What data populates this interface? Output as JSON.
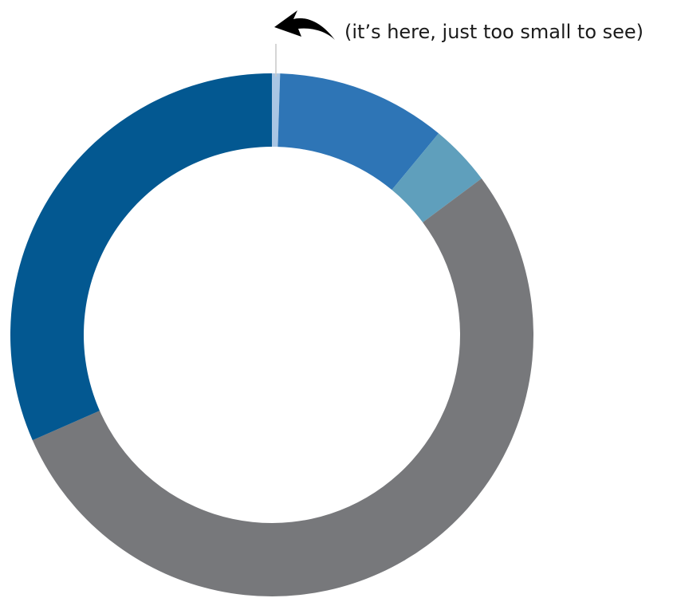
{
  "chart_data": {
    "type": "pie",
    "variant": "donut",
    "title": "",
    "start_angle_deg": 0,
    "direction": "clockwise",
    "slices": [
      {
        "value": 0.5,
        "color": "#a9c6e4"
      },
      {
        "value": 10.5,
        "color": "#2e75b6"
      },
      {
        "value": 3.8,
        "color": "#5f9fbc"
      },
      {
        "value": 53.6,
        "color": "#77787b"
      },
      {
        "value": 31.6,
        "color": "#035891"
      }
    ],
    "annotations": [
      {
        "text": "(it’s here, just too small to see)",
        "points_to_slice": 0
      }
    ]
  }
}
